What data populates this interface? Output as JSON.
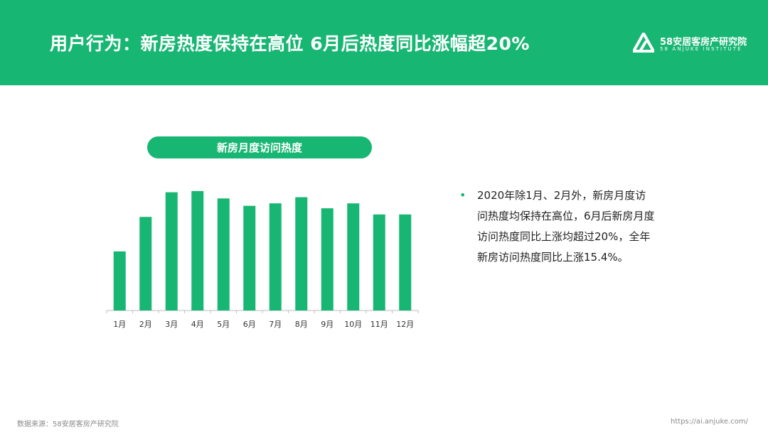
{
  "header": {
    "title": "用户行为：新房热度保持在高位 6月后热度同比涨幅超20%",
    "brand_name": "58安居客房产研究院",
    "brand_en": "58 ANJUKE INSTITUTE",
    "background_color": "#18b673",
    "logo_icon": "anjuke-logo-icon"
  },
  "chart_data": {
    "type": "bar",
    "title": "新房月度访问热度",
    "categories": [
      "1月",
      "2月",
      "3月",
      "4月",
      "5月",
      "6月",
      "7月",
      "8月",
      "9月",
      "10月",
      "11月",
      "12月"
    ],
    "values": [
      48,
      76,
      96,
      97,
      91,
      85,
      87,
      92,
      83,
      87,
      78,
      78
    ],
    "ylim": [
      0,
      105
    ],
    "grid": false,
    "bar_color": "#18b673"
  },
  "text": {
    "bullet": "•",
    "description": "2020年除1月、2月外，新房月度访问热度均保持在高位，6月后新房月度访问热度同比上涨均超过20%，全年新房访问热度同比上涨15.4%。"
  },
  "footer": {
    "source": "数据来源：58安居客房产研究院",
    "url": "https://ai.anjuke.com/"
  }
}
